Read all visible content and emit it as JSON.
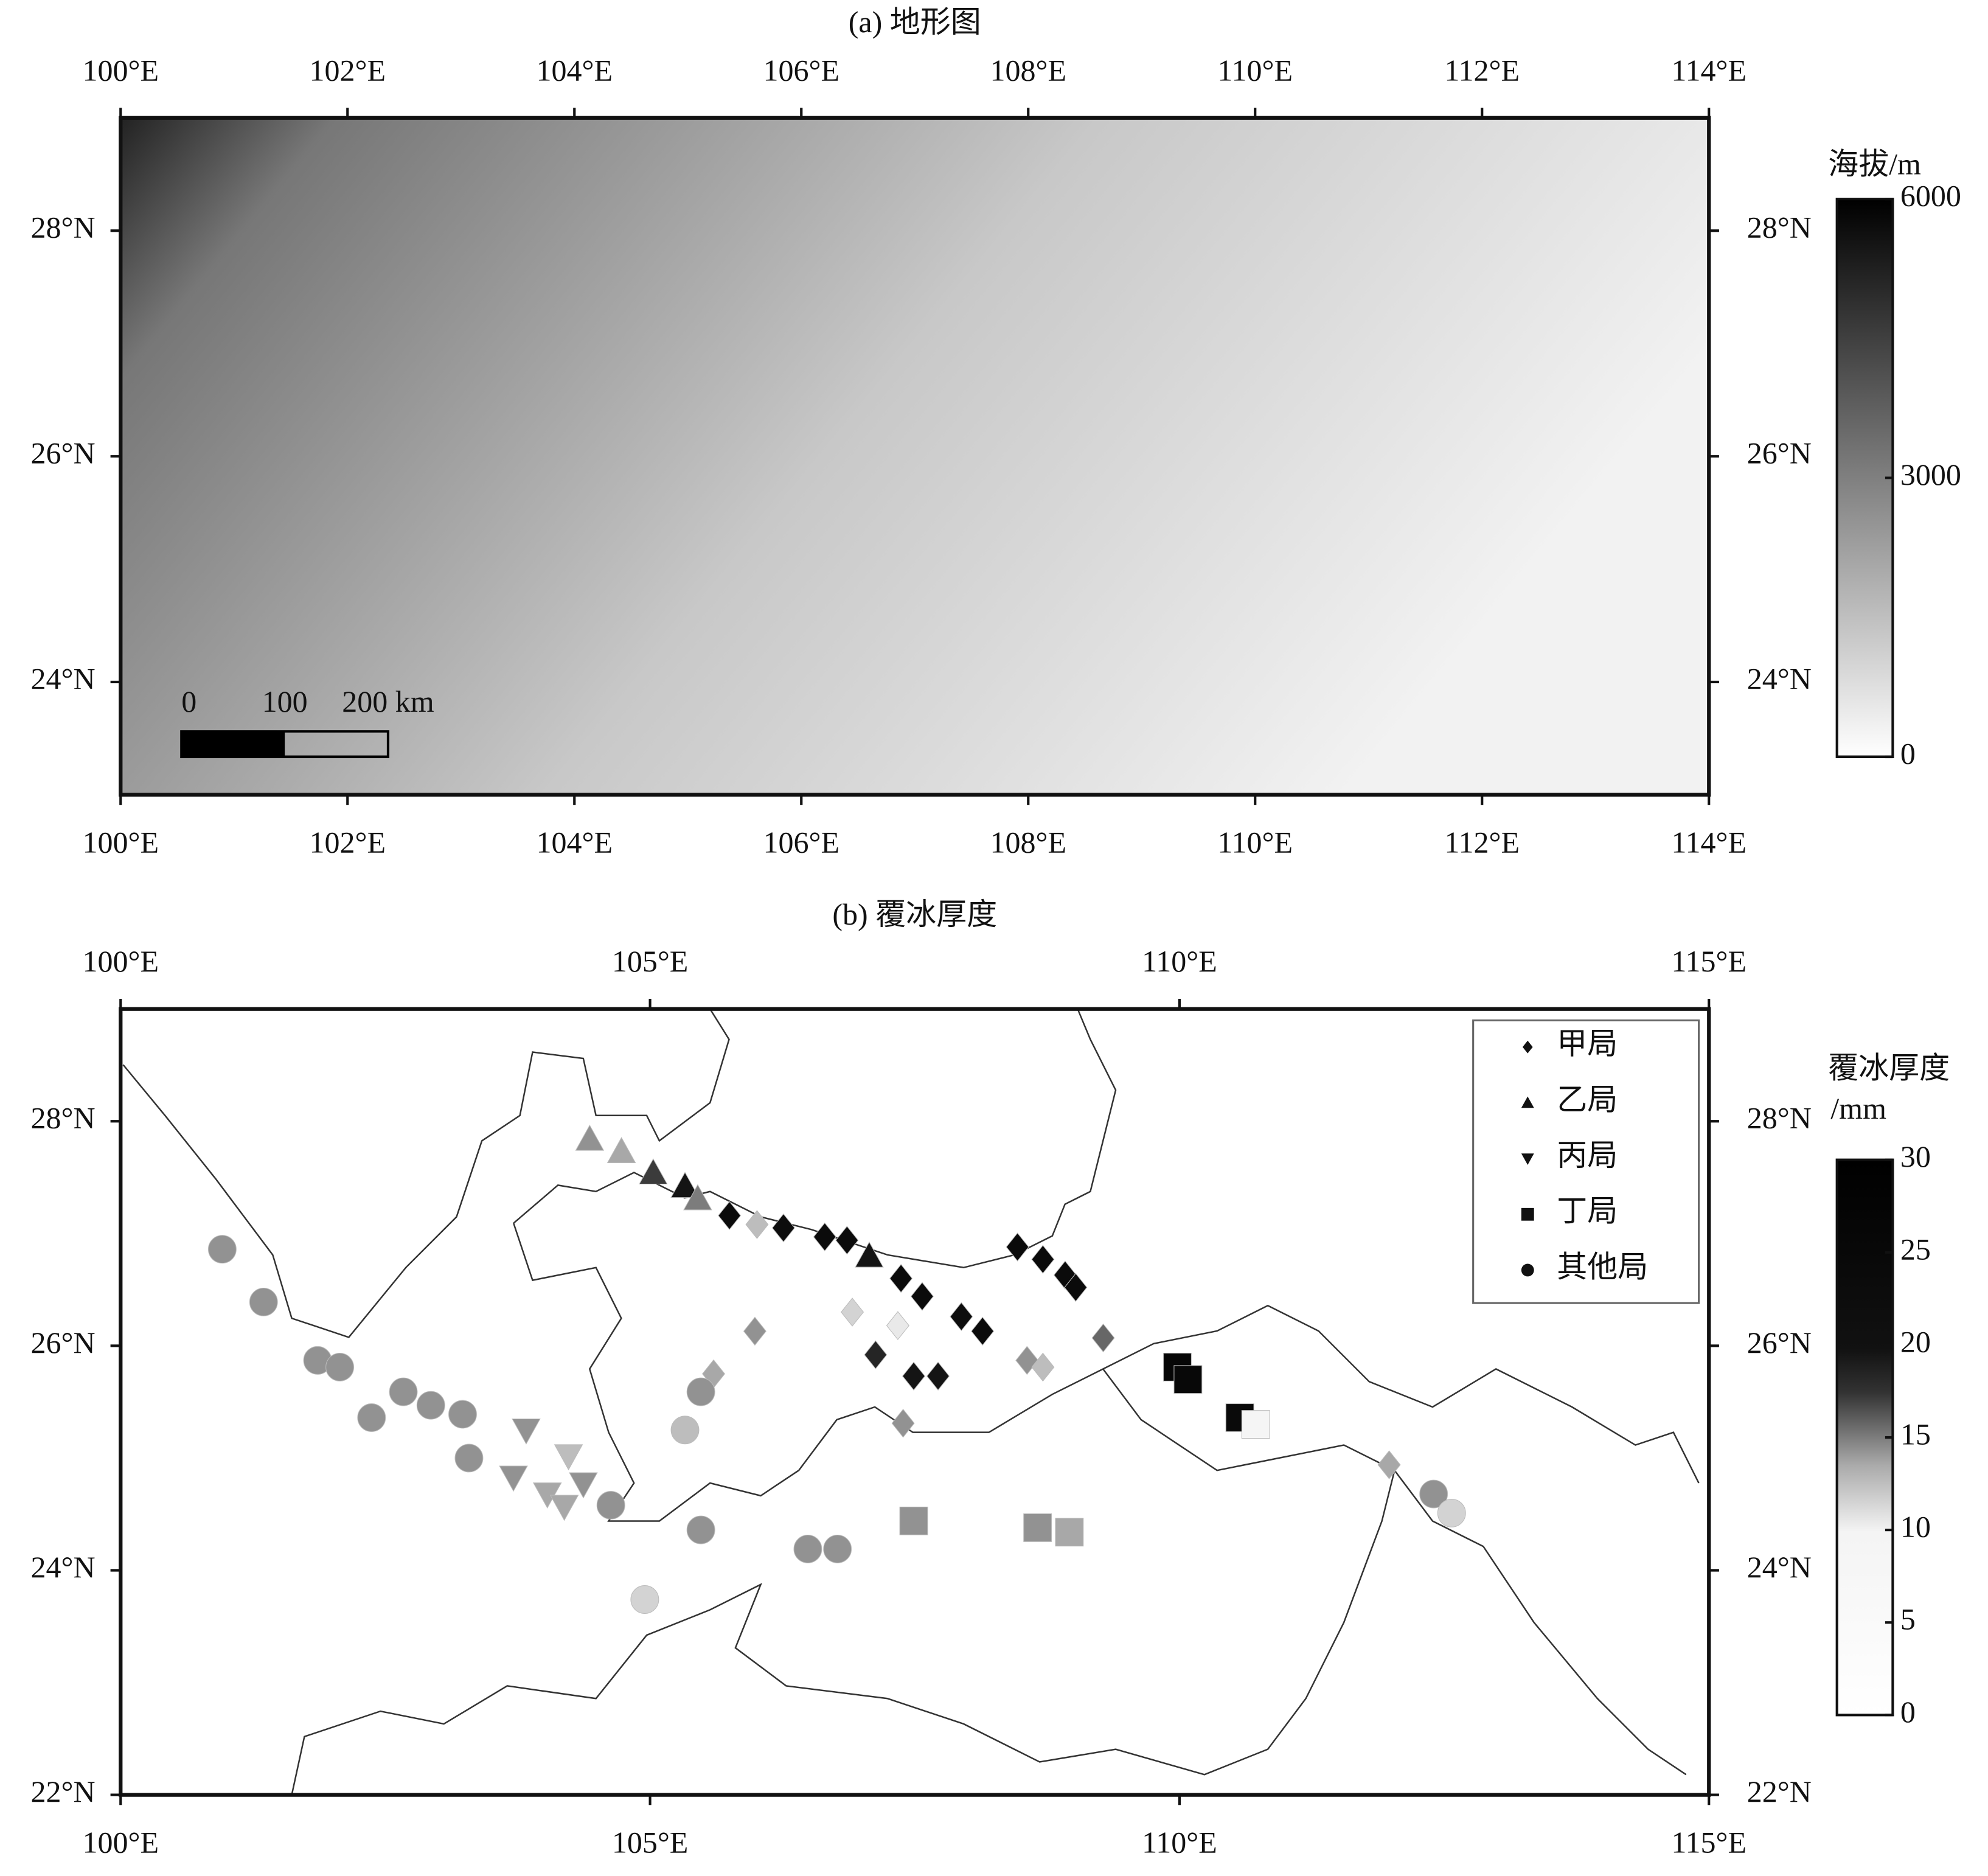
{
  "maps": [
    {
      "title": "(a) 地形图",
      "xlim": [
        100,
        114
      ],
      "ylim": [
        23,
        29
      ],
      "xticks": [
        {
          "value": 100,
          "label": "100°E"
        },
        {
          "value": 102,
          "label": "102°E"
        },
        {
          "value": 104,
          "label": "104°E"
        },
        {
          "value": 106,
          "label": "106°E"
        },
        {
          "value": 108,
          "label": "108°E"
        },
        {
          "value": 110,
          "label": "110°E"
        },
        {
          "value": 112,
          "label": "112°E"
        },
        {
          "value": 114,
          "label": "114°E"
        }
      ],
      "yticks": [
        {
          "value": 24,
          "label": "24°N"
        },
        {
          "value": 26,
          "label": "26°N"
        },
        {
          "value": 28,
          "label": "28°N"
        }
      ],
      "colorbar": {
        "title": [
          "海拔/m"
        ],
        "lim": [
          0,
          6000
        ],
        "ticks": [
          0,
          3000,
          6000
        ]
      },
      "scale_bar": [
        0,
        100,
        {
          "value": 200,
          "label": "200 km"
        }
      ]
    },
    {
      "title": "(b) 覆冰厚度",
      "xlim": [
        100,
        115
      ],
      "ylim": [
        22,
        29
      ],
      "xticks": [
        {
          "value": 100,
          "label": "100°E"
        },
        {
          "value": 105,
          "label": "105°E"
        },
        {
          "value": 110,
          "label": "110°E"
        },
        {
          "value": 115,
          "label": "115°E"
        }
      ],
      "yticks": [
        {
          "value": 22,
          "label": "22°N"
        },
        {
          "value": 24,
          "label": "24°N"
        },
        {
          "value": 26,
          "label": "26°N"
        },
        {
          "value": 28,
          "label": "28°N"
        }
      ],
      "colorbar": {
        "title": [
          "覆冰厚度",
          "/mm"
        ],
        "lim": [
          0,
          30
        ],
        "ticks": [
          0,
          5,
          10,
          15,
          20,
          25,
          30
        ]
      },
      "series": [
        {
          "name": "甲局",
          "marker": "diamond",
          "points": [
            [
              105.99,
              26.13,
              14
            ],
            [
              105.6,
              25.75,
              13
            ],
            [
              106.01,
              27.08,
              12
            ],
            [
              106.91,
              26.3,
              11
            ],
            [
              107.34,
              26.18,
              10
            ],
            [
              108.56,
              25.87,
              14
            ],
            [
              108.71,
              25.81,
              12
            ],
            [
              109.28,
              26.07,
              16
            ],
            [
              111.98,
              24.94,
              13
            ],
            [
              107.39,
              25.31,
              14
            ],
            [
              105.75,
              27.16,
              25
            ],
            [
              106.26,
              27.05,
              24
            ],
            [
              106.65,
              26.97,
              25
            ],
            [
              106.86,
              26.94,
              25
            ],
            [
              107.37,
              26.6,
              25
            ],
            [
              107.57,
              26.44,
              25
            ],
            [
              107.94,
              26.26,
              24
            ],
            [
              108.14,
              26.13,
              25
            ],
            [
              107.13,
              25.92,
              19
            ],
            [
              107.49,
              25.73,
              20
            ],
            [
              107.72,
              25.73,
              20
            ],
            [
              108.47,
              26.88,
              26
            ],
            [
              108.71,
              26.77,
              26
            ],
            [
              108.92,
              26.63,
              25
            ],
            [
              109.02,
              26.52,
              25
            ]
          ]
        },
        {
          "name": "乙局",
          "marker": "triangle-up",
          "points": [
            [
              104.43,
              27.84,
              14
            ],
            [
              104.73,
              27.73,
              13
            ],
            [
              105.03,
              27.54,
              18
            ],
            [
              105.33,
              27.42,
              20
            ],
            [
              105.45,
              27.31,
              15
            ],
            [
              107.07,
              26.8,
              20
            ]
          ]
        },
        {
          "name": "丙局",
          "marker": "triangle-down",
          "points": [
            [
              103.83,
              25.25,
              14
            ],
            [
              104.23,
              25.02,
              12
            ],
            [
              103.71,
              24.83,
              14
            ],
            [
              104.03,
              24.68,
              13
            ],
            [
              104.37,
              24.77,
              14
            ],
            [
              104.19,
              24.57,
              13
            ]
          ]
        },
        {
          "name": "丁局",
          "marker": "square",
          "points": [
            [
              107.49,
              24.44,
              14
            ],
            [
              108.66,
              24.38,
              14
            ],
            [
              108.96,
              24.34,
              13
            ],
            [
              109.98,
              25.81,
              28
            ],
            [
              110.08,
              25.7,
              27
            ],
            [
              110.57,
              25.36,
              26
            ],
            [
              110.72,
              25.3,
              5
            ]
          ]
        },
        {
          "name": "其他局",
          "marker": "circle",
          "points": [
            [
              100.96,
              26.86,
              14
            ],
            [
              101.35,
              26.39,
              14
            ],
            [
              101.86,
              25.87,
              14
            ],
            [
              102.07,
              25.81,
              14
            ],
            [
              102.37,
              25.36,
              14
            ],
            [
              102.67,
              25.59,
              14
            ],
            [
              102.93,
              25.47,
              14
            ],
            [
              103.23,
              25.39,
              14
            ],
            [
              103.29,
              25.0,
              14
            ],
            [
              104.63,
              24.58,
              14
            ],
            [
              105.48,
              25.59,
              14
            ],
            [
              105.33,
              25.25,
              12
            ],
            [
              105.48,
              24.36,
              14
            ],
            [
              106.49,
              24.19,
              14
            ],
            [
              106.77,
              24.19,
              14
            ],
            [
              104.95,
              23.74,
              11
            ],
            [
              112.4,
              24.68,
              14
            ],
            [
              112.57,
              24.51,
              11
            ]
          ]
        }
      ]
    }
  ]
}
